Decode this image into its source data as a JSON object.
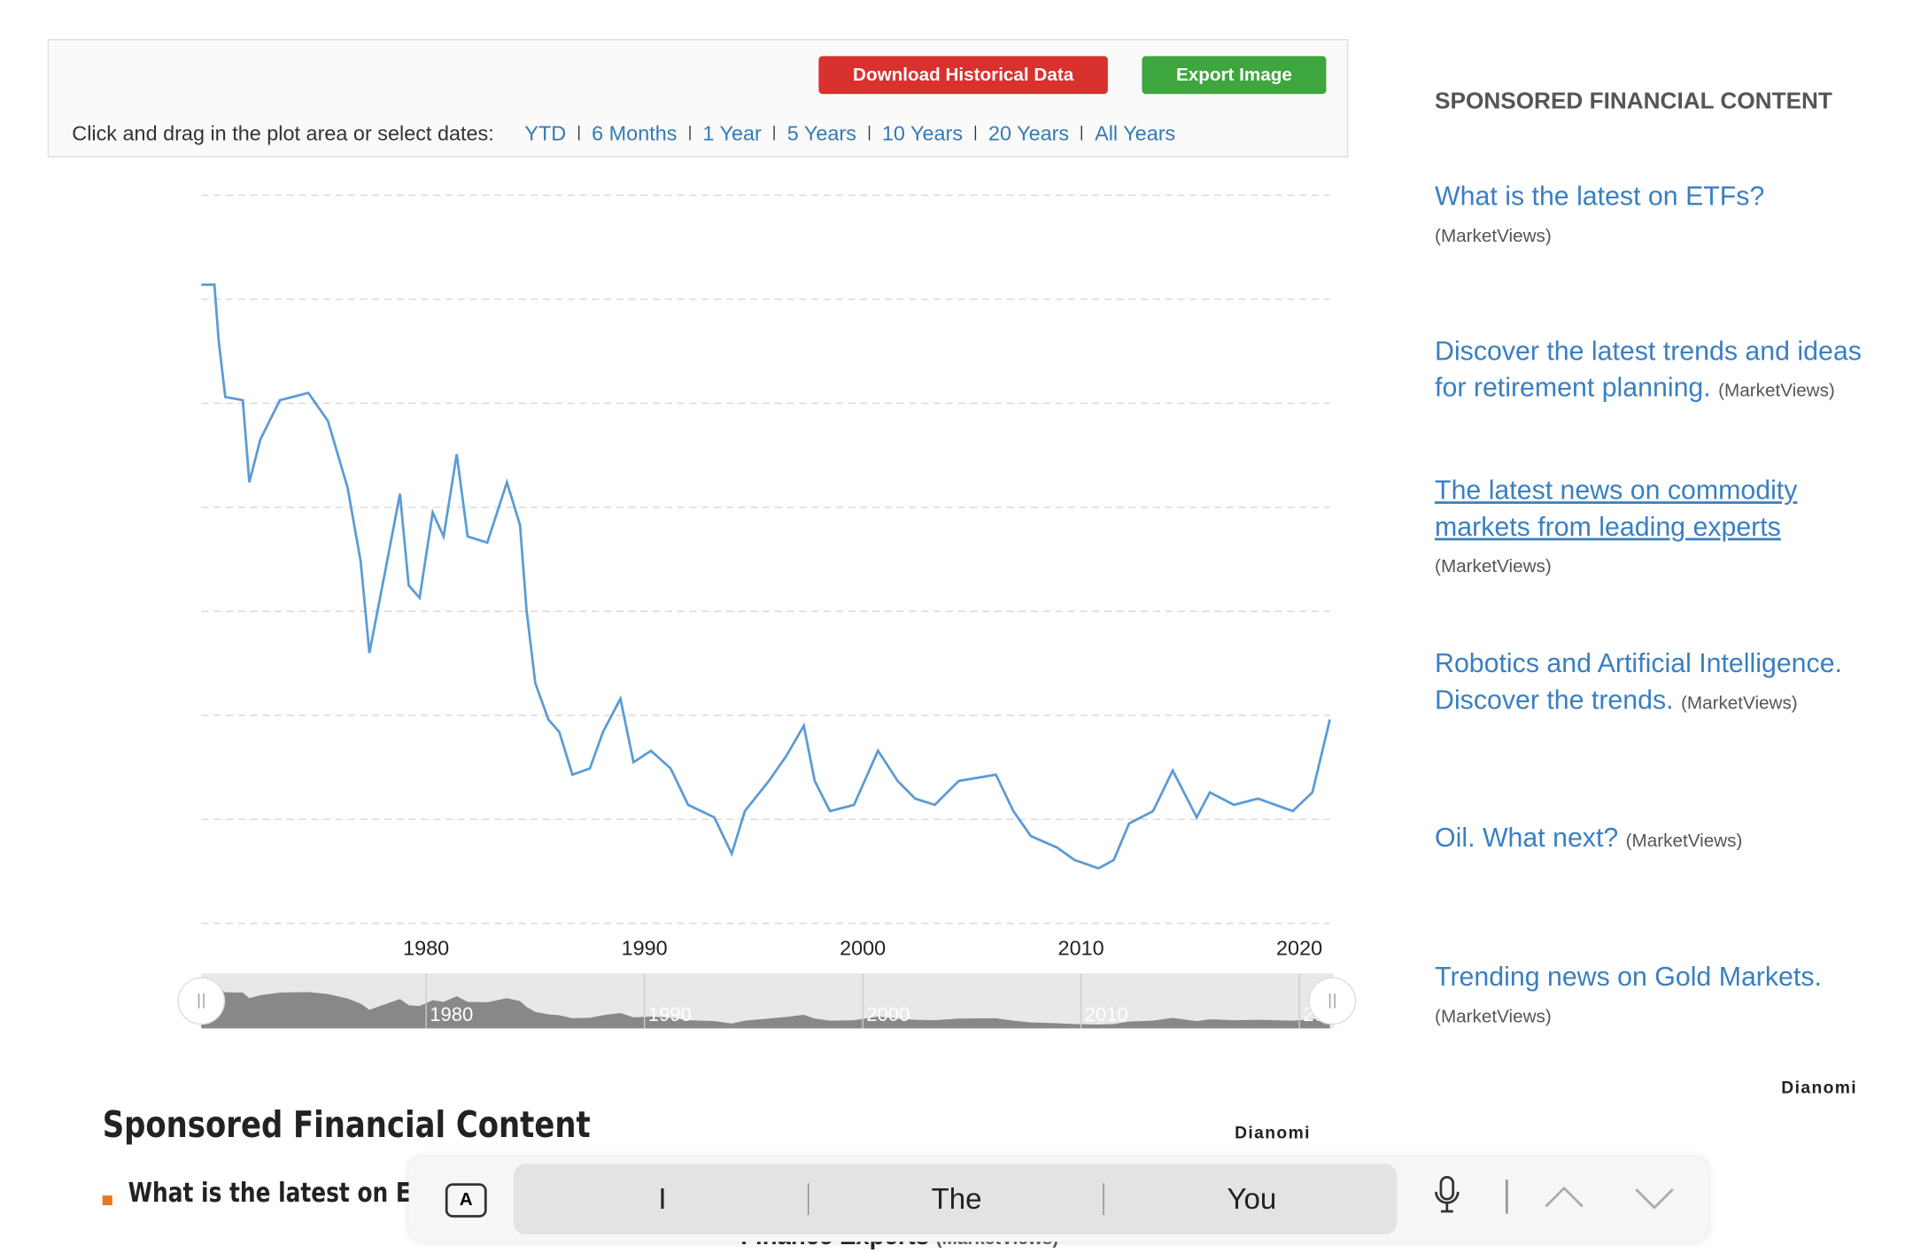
{
  "toolbar": {
    "download_button": "Download Historical Data",
    "export_button": "Export Image",
    "prompt": "Click and drag in the plot area or select dates:",
    "ranges": [
      "YTD",
      "6 Months",
      "1 Year",
      "5 Years",
      "10 Years",
      "20 Years",
      "All Years"
    ]
  },
  "chart_data": {
    "type": "line",
    "x": [
      1969.7,
      1970.3,
      1970.5,
      1970.8,
      1971.6,
      1971.9,
      1972.4,
      1973.3,
      1974.6,
      1975.5,
      1976.4,
      1977.0,
      1977.4,
      1978.1,
      1978.8,
      1979.2,
      1979.7,
      1980.3,
      1980.8,
      1981.4,
      1981.9,
      1982.8,
      1983.7,
      1984.3,
      1984.6,
      1985.0,
      1985.6,
      1986.1,
      1986.7,
      1987.5,
      1988.1,
      1988.9,
      1989.5,
      1990.3,
      1991.2,
      1992.0,
      1993.2,
      1994.0,
      1994.6,
      1995.7,
      1996.5,
      1997.3,
      1997.8,
      1998.5,
      1999.6,
      2000.7,
      2001.6,
      2002.4,
      2003.3,
      2004.4,
      2006.1,
      2006.9,
      2007.7,
      2008.9,
      2009.7,
      2010.8,
      2011.5,
      2012.2,
      2013.3,
      2014.2,
      2015.3,
      2015.9,
      2017.0,
      2018.1,
      2019.7,
      2020.6,
      2021.0,
      2021.4
    ],
    "series": [
      {
        "color": "#5b9bd5",
        "values": [
          6.14,
          6.14,
          5.59,
          5.06,
          5.03,
          4.24,
          4.65,
          5.03,
          5.1,
          4.83,
          4.19,
          3.48,
          2.6,
          3.36,
          4.13,
          3.25,
          3.13,
          3.95,
          3.72,
          4.51,
          3.72,
          3.66,
          4.24,
          3.83,
          3.01,
          2.31,
          1.96,
          1.84,
          1.43,
          1.49,
          1.84,
          2.16,
          1.55,
          1.66,
          1.49,
          1.14,
          1.02,
          0.67,
          1.08,
          1.37,
          1.61,
          1.9,
          1.37,
          1.08,
          1.14,
          1.66,
          1.37,
          1.2,
          1.14,
          1.37,
          1.43,
          1.08,
          0.84,
          0.73,
          0.61,
          0.53,
          0.61,
          0.96,
          1.08,
          1.47,
          1.02,
          1.26,
          1.14,
          1.2,
          1.08,
          1.26,
          1.61,
          1.96
        ]
      }
    ],
    "xlim": [
      1969.7,
      2021.4
    ],
    "xticks": [
      1980,
      1990,
      2000,
      2010,
      2020
    ],
    "ylim": [
      0,
      7
    ],
    "yticks": [
      0,
      1,
      2,
      3,
      4,
      5,
      6,
      7
    ],
    "grid": true,
    "navigator_color": "#888888"
  },
  "sidebar": {
    "title": "SPONSORED FINANCIAL CONTENT",
    "items": [
      {
        "text": "What is the latest on ETFs?",
        "source": "(MarketViews)"
      },
      {
        "text": "Discover the latest trends and ideas for retirement planning.",
        "source": "(MarketViews)"
      },
      {
        "text": "The latest news on commodity markets from leading experts",
        "source": "(MarketViews)"
      },
      {
        "text": "Robotics and Artificial Intelligence. Discover the trends.",
        "source": "(MarketViews)"
      },
      {
        "text": "Oil. What next?",
        "source": "(MarketViews)"
      },
      {
        "text": "Trending news on Gold Markets.",
        "source": "(MarketViews)"
      }
    ],
    "logo": "Dianomi"
  },
  "bottom": {
    "title": "Sponsored Financial Content",
    "logo": "Dianomi",
    "item": "What is the latest on ETFs",
    "partial": "Finance Experts",
    "partial_source": "(MarketViews)"
  },
  "keyboard": {
    "icon": "A",
    "suggestions": [
      "I",
      "The",
      "You"
    ]
  }
}
